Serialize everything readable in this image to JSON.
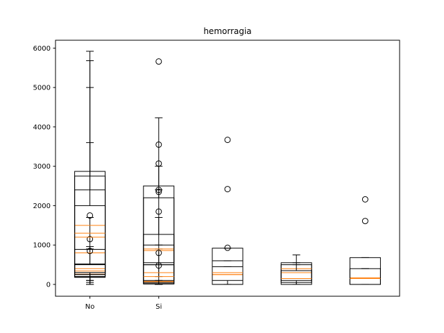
{
  "chart_data": {
    "type": "box",
    "title": "hemorragia",
    "xlabel": "",
    "ylabel": "",
    "xlim": [
      0.5,
      5.5
    ],
    "ylim": [
      -300,
      6200
    ],
    "yticks": [
      0,
      1000,
      2000,
      3000,
      4000,
      5000,
      6000
    ],
    "xticks": [
      {
        "pos": 1,
        "label": "No"
      },
      {
        "pos": 2,
        "label": "Si"
      }
    ],
    "grid": false,
    "colors": {
      "box": "#000000",
      "median": "#ff7f0e"
    },
    "boxes": [
      {
        "pos": 1,
        "q1": 180,
        "median": 260,
        "q3": 520,
        "whislo": 0,
        "whishi": 960,
        "fliers": []
      },
      {
        "pos": 1,
        "q1": 200,
        "median": 340,
        "q3": 500,
        "whislo": 0,
        "whishi": 900,
        "fliers": [
          1150,
          1750
        ]
      },
      {
        "pos": 1,
        "q1": 190,
        "median": 400,
        "q3": 890,
        "whislo": 0,
        "whishi": 1700,
        "fliers": []
      },
      {
        "pos": 1,
        "q1": 250,
        "median": 1200,
        "q3": 2750,
        "whislo": 0,
        "whishi": 5680,
        "fliers": []
      },
      {
        "pos": 1,
        "q1": 300,
        "median": 1500,
        "q3": 2870,
        "whislo": 100,
        "whishi": 5920,
        "fliers": []
      },
      {
        "pos": 1,
        "q1": 250,
        "median": 800,
        "q3": 2000,
        "whislo": 50,
        "whishi": 5000,
        "fliers": []
      },
      {
        "pos": 1,
        "q1": 300,
        "median": 1300,
        "q3": 2400,
        "whislo": 100,
        "whishi": 3600,
        "fliers": [
          850
        ]
      },
      {
        "pos": 2,
        "q1": 20,
        "median": 60,
        "q3": 500,
        "whislo": 0,
        "whishi": 1000,
        "fliers": [
          1850
        ]
      },
      {
        "pos": 2,
        "q1": 10,
        "median": 80,
        "q3": 500,
        "whislo": 0,
        "whishi": 900,
        "fliers": [
          3550,
          3070,
          2400,
          2350
        ]
      },
      {
        "pos": 2,
        "q1": 500,
        "median": 860,
        "q3": 1270,
        "whislo": 100,
        "whishi": 2400,
        "fliers": [
          5660
        ]
      },
      {
        "pos": 2,
        "q1": 550,
        "median": 900,
        "q3": 2500,
        "whislo": 200,
        "whishi": 4230,
        "fliers": [
          800,
          480
        ]
      },
      {
        "pos": 2,
        "q1": 100,
        "median": 300,
        "q3": 1000,
        "whislo": 0,
        "whishi": 1700,
        "fliers": []
      },
      {
        "pos": 2,
        "q1": 50,
        "median": 200,
        "q3": 2200,
        "whislo": 0,
        "whishi": 3000,
        "fliers": []
      },
      {
        "pos": 3,
        "q1": 0,
        "median": 250,
        "q3": 920,
        "whislo": 0,
        "whishi": 920,
        "fliers": [
          3670,
          2420,
          930
        ]
      },
      {
        "pos": 3,
        "q1": 0,
        "median": 250,
        "q3": 600,
        "whislo": 0,
        "whishi": 600,
        "fliers": []
      },
      {
        "pos": 3,
        "q1": 100,
        "median": 300,
        "q3": 450,
        "whislo": 0,
        "whishi": 450,
        "fliers": []
      },
      {
        "pos": 4,
        "q1": 50,
        "median": 300,
        "q3": 550,
        "whislo": 0,
        "whishi": 750,
        "fliers": []
      },
      {
        "pos": 4,
        "q1": 100,
        "median": 400,
        "q3": 500,
        "whislo": 0,
        "whishi": 550,
        "fliers": []
      },
      {
        "pos": 4,
        "q1": 0,
        "median": 150,
        "q3": 350,
        "whislo": 0,
        "whishi": 500,
        "fliers": []
      },
      {
        "pos": 5,
        "q1": 0,
        "median": 170,
        "q3": 680,
        "whislo": 0,
        "whishi": 680,
        "fliers": [
          2160,
          1610
        ]
      },
      {
        "pos": 5,
        "q1": 0,
        "median": 150,
        "q3": 400,
        "whislo": 0,
        "whishi": 400,
        "fliers": []
      }
    ]
  }
}
